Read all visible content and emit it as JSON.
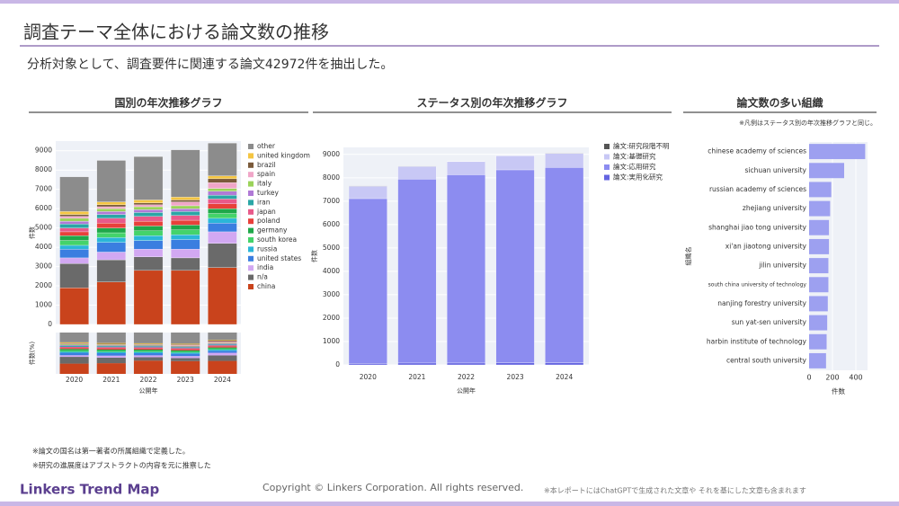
{
  "title": "調査テーマ全体における論文数の推移",
  "subtitle": "分析対象として、調査要件に関連する論文42972件を抽出した。",
  "notes": [
    "※論文の国名は第一著者の所属組織で定義した。",
    "※研究の進展度はアブストラクトの内容を元に推察した"
  ],
  "brand": "Linkers Trend Map",
  "copyright": "Copyright © Linkers Corporation. All rights reserved.",
  "disclaimer": "※本レポートにはChatGPTで生成された文章や それを基にした文章も含まれます",
  "chart_data": [
    {
      "type": "stacked_bar",
      "title": "国別の年次推移グラフ",
      "y_label": "件数",
      "y_label_share": "件数(%)",
      "x_label": "公開年",
      "categories": [
        "2020",
        "2021",
        "2022",
        "2023",
        "2024"
      ],
      "ylim": [
        0,
        9500
      ],
      "yticks": [
        0,
        1000,
        2000,
        3000,
        4000,
        5000,
        6000,
        7000,
        8000,
        9000
      ],
      "series": [
        {
          "name": "other",
          "color": "#8c8c8c",
          "values": [
            1800,
            2150,
            2250,
            2450,
            1700
          ]
        },
        {
          "name": "united kingdom",
          "color": "#f4c542",
          "values": [
            150,
            150,
            150,
            150,
            150
          ]
        },
        {
          "name": "brazil",
          "color": "#7a5a3a",
          "values": [
            100,
            100,
            100,
            100,
            200
          ]
        },
        {
          "name": "spain",
          "color": "#f0a6c8",
          "values": [
            100,
            100,
            100,
            200,
            300
          ]
        },
        {
          "name": "italy",
          "color": "#9bd35a",
          "values": [
            150,
            150,
            150,
            150,
            150
          ]
        },
        {
          "name": "turkey",
          "color": "#b07ad6",
          "values": [
            150,
            150,
            150,
            150,
            200
          ]
        },
        {
          "name": "iran",
          "color": "#2aa6a6",
          "values": [
            200,
            200,
            200,
            200,
            200
          ]
        },
        {
          "name": "japan",
          "color": "#e85a8a",
          "values": [
            200,
            250,
            250,
            250,
            250
          ]
        },
        {
          "name": "poland",
          "color": "#e8403a",
          "values": [
            200,
            250,
            250,
            250,
            250
          ]
        },
        {
          "name": "germany",
          "color": "#1fa84a",
          "values": [
            250,
            250,
            250,
            250,
            250
          ]
        },
        {
          "name": "south korea",
          "color": "#44d36a",
          "values": [
            250,
            250,
            250,
            250,
            250
          ]
        },
        {
          "name": "russia",
          "color": "#2bb6d8",
          "values": [
            200,
            250,
            250,
            250,
            250
          ]
        },
        {
          "name": "united states",
          "color": "#3a7ee0",
          "values": [
            450,
            500,
            450,
            500,
            450
          ]
        },
        {
          "name": "india",
          "color": "#d2a8f2",
          "values": [
            300,
            400,
            400,
            450,
            600
          ]
        },
        {
          "name": "n/a",
          "color": "#6a6a6a",
          "values": [
            1250,
            1150,
            700,
            650,
            1250
          ]
        },
        {
          "name": "china",
          "color": "#c9431c",
          "values": [
            1900,
            2200,
            2800,
            2800,
            2950
          ]
        }
      ]
    },
    {
      "type": "stacked_bar",
      "title": "ステータス別の年次推移グラフ",
      "y_label": "件数",
      "x_label": "公開年",
      "categories": [
        "2020",
        "2021",
        "2022",
        "2023",
        "2024"
      ],
      "ylim": [
        0,
        9300
      ],
      "yticks": [
        0,
        1000,
        2000,
        3000,
        4000,
        5000,
        6000,
        7000,
        8000,
        9000
      ],
      "series": [
        {
          "name": "論文:研究段階不明",
          "color": "#555555",
          "values": [
            10,
            10,
            10,
            10,
            10
          ]
        },
        {
          "name": "論文:基礎研究",
          "color": "#c8c8f5",
          "values": [
            530,
            550,
            560,
            600,
            600
          ]
        },
        {
          "name": "論文:応用研究",
          "color": "#8c8cf0",
          "values": [
            7050,
            7860,
            8050,
            8250,
            8350
          ]
        },
        {
          "name": "論文:実用化研究",
          "color": "#6464e0",
          "values": [
            60,
            80,
            80,
            90,
            90
          ]
        }
      ]
    },
    {
      "type": "barh",
      "title": "論文数の多い組織",
      "note": "※凡例はステータス別の年次推移グラフと同じ。",
      "y_label": "組織名",
      "x_label": "件数",
      "color": "#9da0f0",
      "categories": [
        "chinese academy of sciences",
        "sichuan university",
        "russian academy of sciences",
        "zhejiang university",
        "shanghai jiao tong university",
        "xi'an jiaotong university",
        "jilin university",
        "south china university of technology",
        "nanjing forestry university",
        "sun yat-sen university",
        "harbin institute of technology",
        "central south university"
      ],
      "values": [
        480,
        300,
        190,
        180,
        170,
        170,
        165,
        165,
        160,
        155,
        150,
        145
      ],
      "xlim": [
        0,
        500
      ],
      "xticks": [
        0,
        200,
        400
      ]
    }
  ]
}
